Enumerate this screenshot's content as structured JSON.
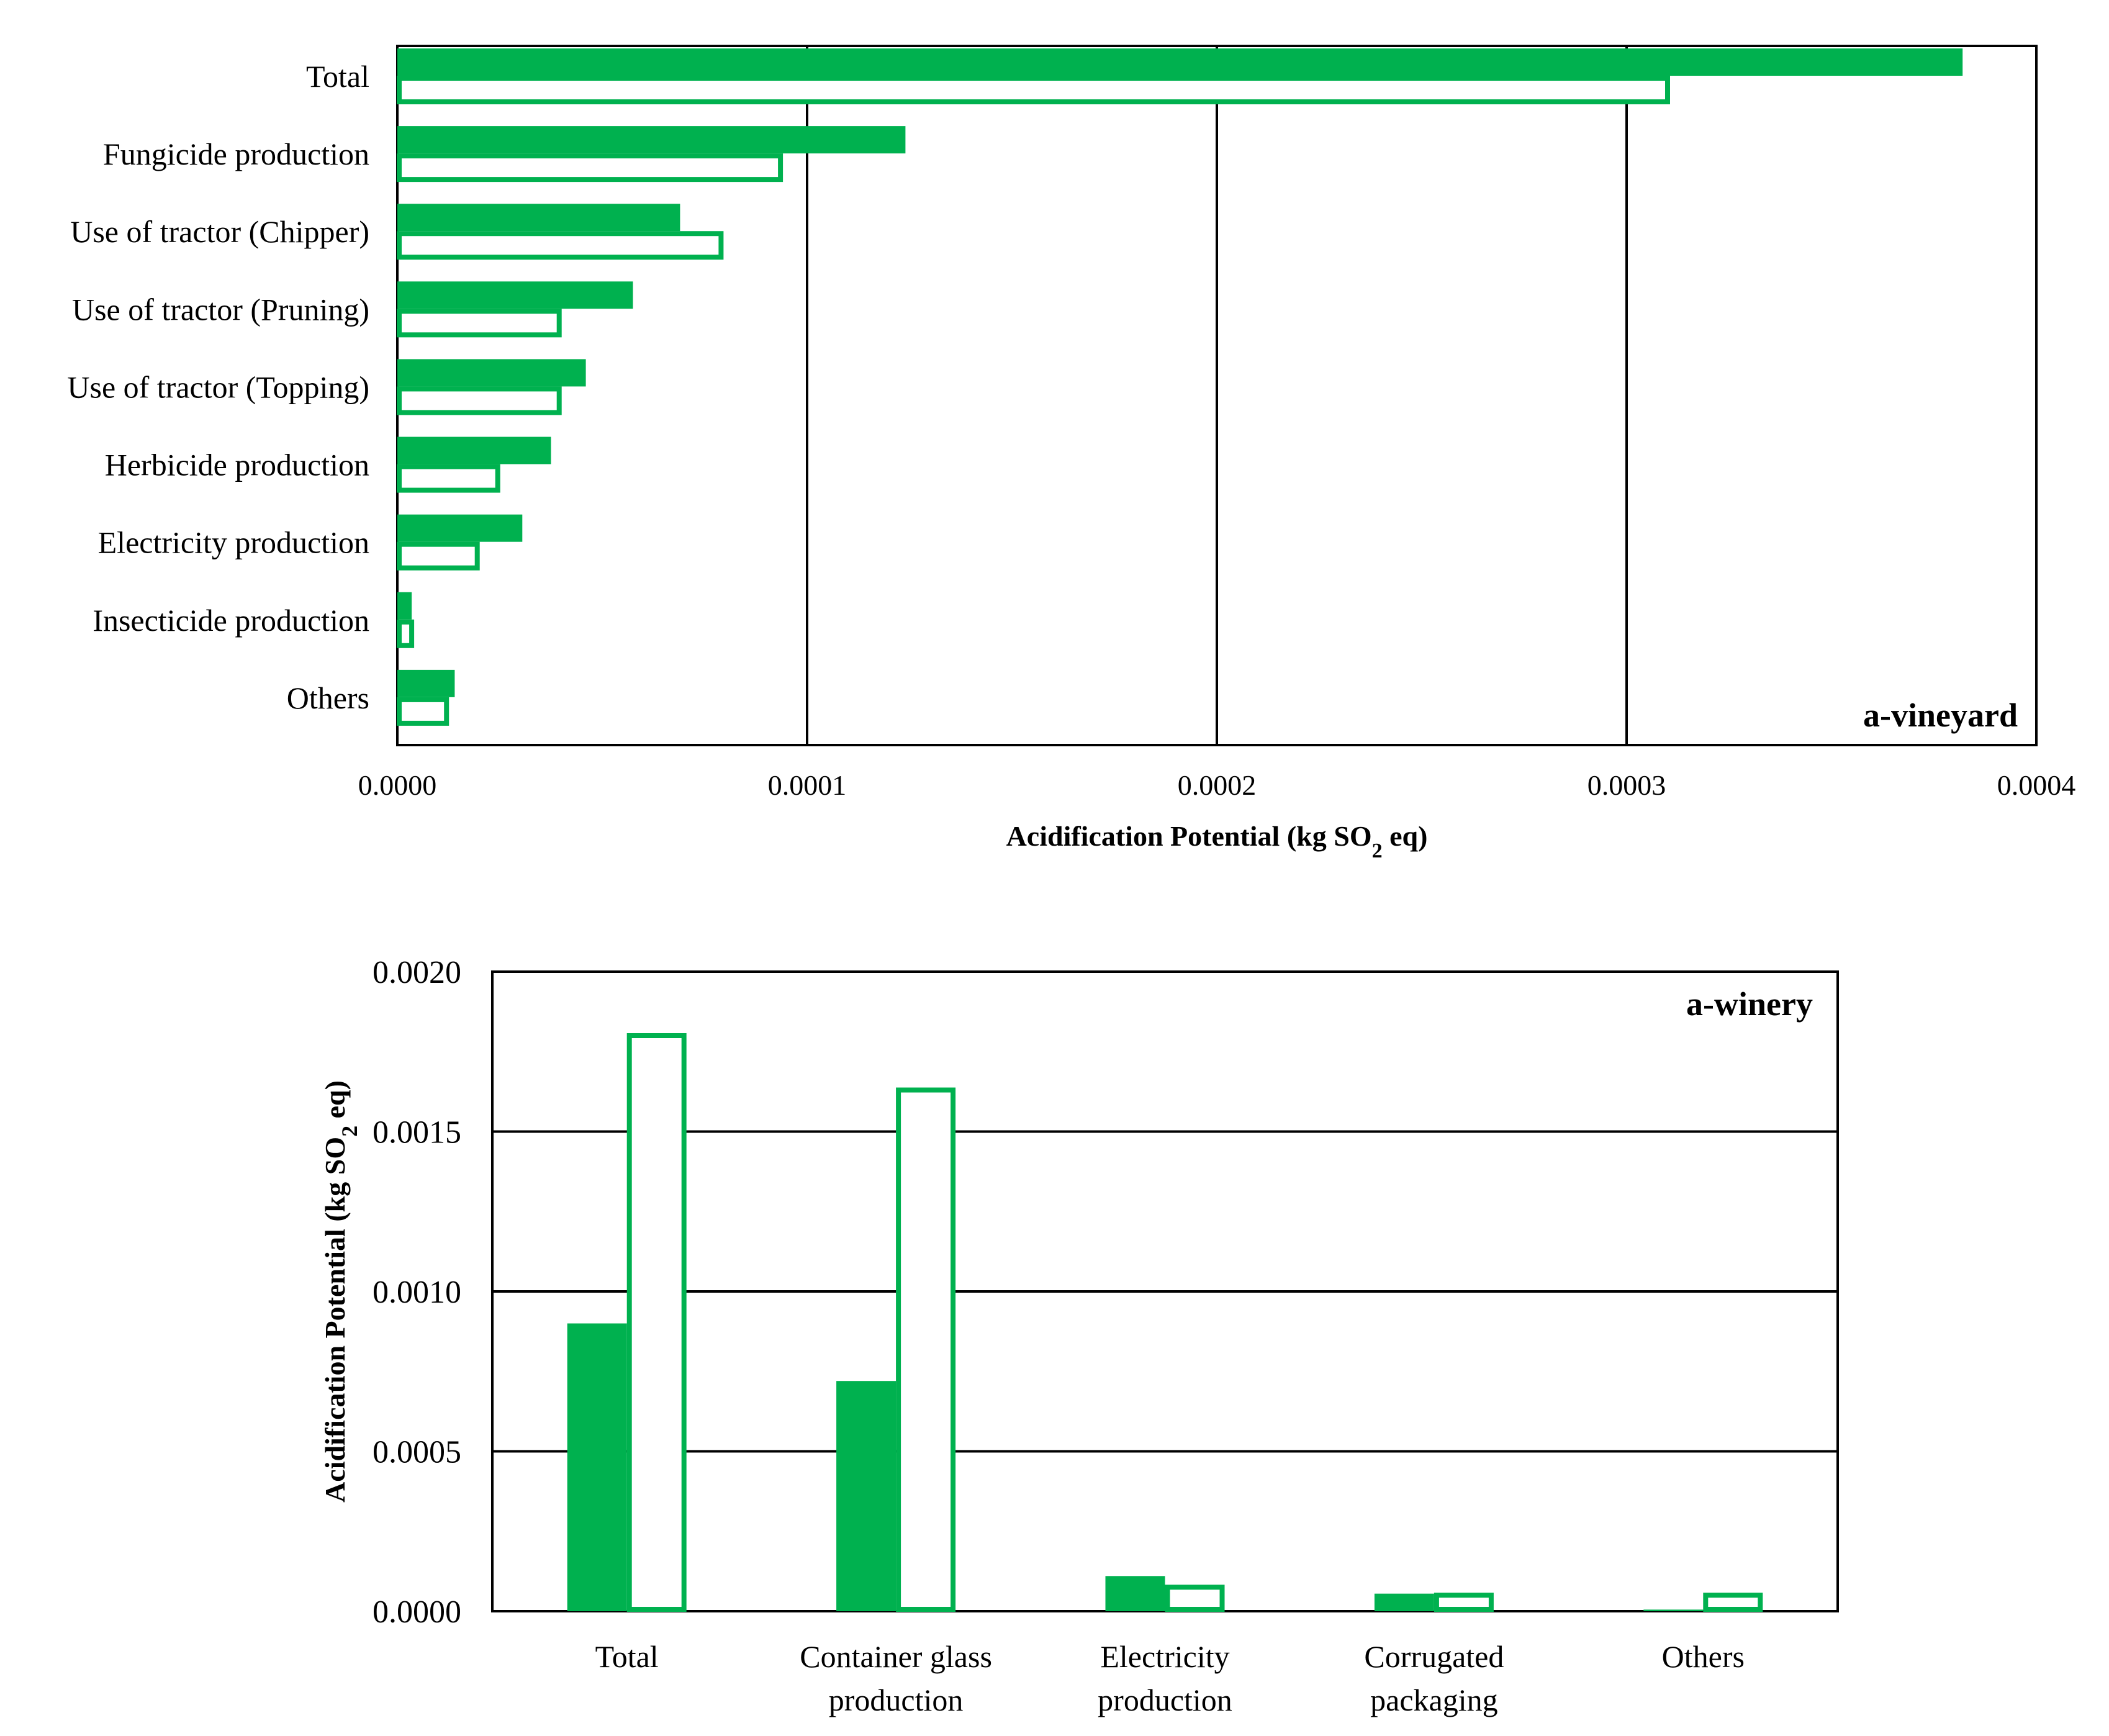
{
  "colors": {
    "accent": "#00b14f",
    "frame": "#000000",
    "background": "#ffffff"
  },
  "chart_data": [
    {
      "id": "vineyard",
      "type": "bar",
      "orientation": "horizontal",
      "panel_label": "a-vineyard",
      "xlabel_main": "Acidification  Potential  (kg SO",
      "xlabel_sub": "2",
      "xlabel_end": " eq)",
      "ylabel": "",
      "xlim": [
        0,
        0.0004
      ],
      "ticks": [
        0,
        0.0001,
        0.0002,
        0.0003,
        0.0004
      ],
      "tick_labels": [
        "0.0000",
        "0.0001",
        "0.0002",
        "0.0003",
        "0.0004"
      ],
      "gridlines": "vertical",
      "categories": [
        "Total",
        "Fungicide production",
        "Use of tractor (Chipper)",
        "Use of tractor (Pruning)",
        "Use of tractor (Topping)",
        "Herbicide production",
        "Electricity production",
        "Insecticide production",
        "Others"
      ],
      "series": [
        {
          "name": "filled",
          "style": "solid",
          "values": [
            0.000382,
            0.000124,
            6.9e-05,
            5.75e-05,
            4.6e-05,
            3.75e-05,
            3.05e-05,
            3.5e-06,
            1.4e-05
          ]
        },
        {
          "name": "outline",
          "style": "outline",
          "values": [
            0.00031,
            9.35e-05,
            7.9e-05,
            3.95e-05,
            3.95e-05,
            2.45e-05,
            1.95e-05,
            3.5e-06,
            1.2e-05
          ]
        }
      ]
    },
    {
      "id": "winery",
      "type": "bar",
      "orientation": "vertical",
      "panel_label": "a-winery",
      "ylabel_main": "Acidification  Potential  (kg SO",
      "ylabel_sub": "2",
      "ylabel_end": " eq)",
      "xlabel": "",
      "ylim": [
        0,
        0.002
      ],
      "ticks": [
        0,
        0.0005,
        0.001,
        0.0015,
        0.002
      ],
      "tick_labels": [
        "0.0000",
        "0.0005",
        "0.0010",
        "0.0015",
        "0.0020"
      ],
      "gridlines": "horizontal",
      "categories": [
        [
          "Total"
        ],
        [
          "Container glass",
          "production"
        ],
        [
          "Electricity",
          "production"
        ],
        [
          "Corrugated",
          "packaging"
        ],
        [
          "Others"
        ]
      ],
      "series": [
        {
          "name": "filled",
          "style": "solid",
          "values": [
            0.0009,
            0.00072,
            0.00011,
            5.5e-05,
            5e-06
          ]
        },
        {
          "name": "outline",
          "style": "outline",
          "values": [
            0.0018,
            0.00163,
            7.5e-05,
            5e-05,
            5e-05
          ]
        }
      ]
    }
  ]
}
